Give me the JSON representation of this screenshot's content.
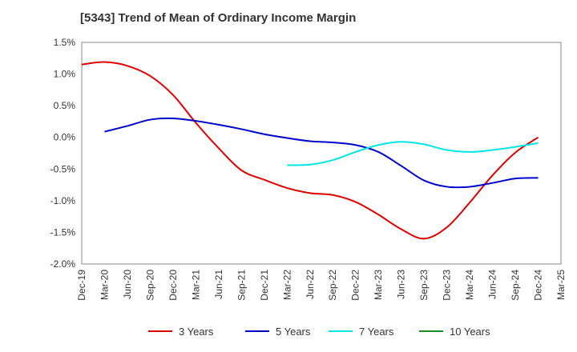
{
  "chart_data": {
    "type": "line",
    "title": "[5343]  Trend of Mean of Ordinary Income Margin",
    "y_ticks": [
      "1.5%",
      "1.0%",
      "0.5%",
      "0.0%",
      "-0.5%",
      "-1.0%",
      "-1.5%",
      "-2.0%"
    ],
    "y_tick_values": [
      1.5,
      1.0,
      0.5,
      0.0,
      -0.5,
      -1.0,
      -1.5,
      -2.0
    ],
    "ylim": [
      -2.0,
      1.5
    ],
    "x_ticks": [
      "Dec-19",
      "Mar-20",
      "Jun-20",
      "Sep-20",
      "Dec-20",
      "Mar-21",
      "Jun-21",
      "Sep-21",
      "Dec-21",
      "Mar-22",
      "Jun-22",
      "Sep-22",
      "Dec-22",
      "Mar-23",
      "Jun-23",
      "Sep-23",
      "Dec-23",
      "Mar-24",
      "Jun-24",
      "Sep-24",
      "Dec-24",
      "Mar-25"
    ],
    "grid": true,
    "legend_position": "bottom",
    "series": [
      {
        "name": "3 Years",
        "color": "#dd0000",
        "x": [
          "Dec-19",
          "Mar-20",
          "Jun-20",
          "Sep-20",
          "Dec-20",
          "Mar-21",
          "Jun-21",
          "Sep-21",
          "Dec-21",
          "Mar-22",
          "Jun-22",
          "Sep-22",
          "Dec-22",
          "Mar-23",
          "Jun-23",
          "Sep-23",
          "Dec-23",
          "Mar-24",
          "Jun-24",
          "Sep-24",
          "Dec-24"
        ],
        "values": [
          1.15,
          1.19,
          1.13,
          0.97,
          0.67,
          0.23,
          -0.17,
          -0.52,
          -0.67,
          -0.8,
          -0.88,
          -0.91,
          -1.02,
          -1.22,
          -1.45,
          -1.6,
          -1.42,
          -1.03,
          -0.6,
          -0.24,
          0.0
        ]
      },
      {
        "name": "5 Years",
        "color": "#0000cc",
        "x": [
          "Mar-20",
          "Jun-20",
          "Sep-20",
          "Dec-20",
          "Mar-21",
          "Jun-21",
          "Sep-21",
          "Dec-21",
          "Mar-22",
          "Jun-22",
          "Sep-22",
          "Dec-22",
          "Mar-23",
          "Jun-23",
          "Sep-23",
          "Dec-23",
          "Mar-24",
          "Jun-24",
          "Sep-24",
          "Dec-24"
        ],
        "values": [
          0.09,
          0.18,
          0.28,
          0.3,
          0.26,
          0.2,
          0.13,
          0.05,
          -0.01,
          -0.06,
          -0.08,
          -0.12,
          -0.23,
          -0.45,
          -0.68,
          -0.78,
          -0.78,
          -0.72,
          -0.65,
          -0.64
        ]
      },
      {
        "name": "7 Years",
        "color": "#00e5e5",
        "x": [
          "Mar-22",
          "Jun-22",
          "Sep-22",
          "Dec-22",
          "Mar-23",
          "Jun-23",
          "Sep-23",
          "Dec-23",
          "Mar-24",
          "Jun-24",
          "Sep-24",
          "Dec-24"
        ],
        "values": [
          -0.44,
          -0.43,
          -0.36,
          -0.23,
          -0.12,
          -0.07,
          -0.11,
          -0.2,
          -0.23,
          -0.2,
          -0.15,
          -0.09
        ]
      },
      {
        "name": "10 Years",
        "color": "#228b22",
        "x": [],
        "values": []
      }
    ]
  }
}
